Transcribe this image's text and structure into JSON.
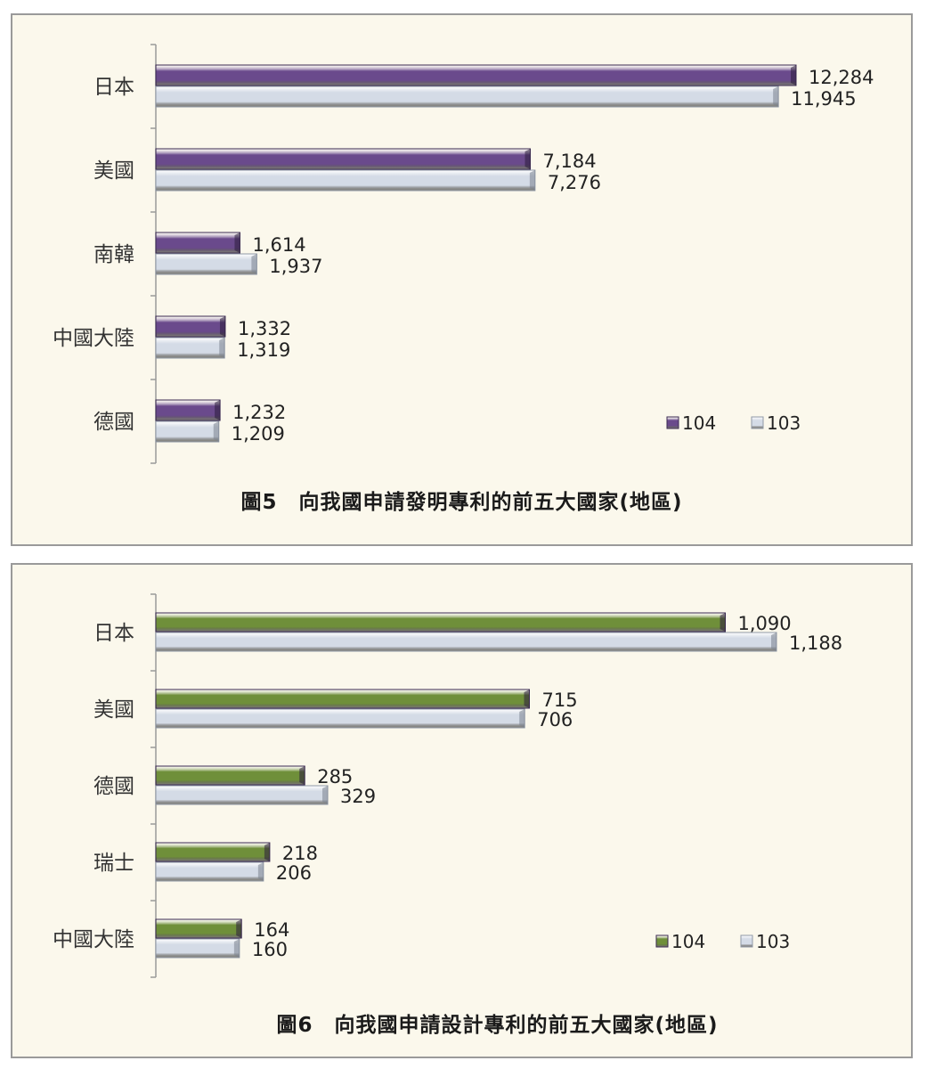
{
  "chart_data": [
    {
      "type": "bar",
      "orientation": "horizontal",
      "title": "圖5　向我國申請發明專利的前五大國家(地區)",
      "categories": [
        "日本",
        "美國",
        "南韓",
        "中國大陸",
        "德國"
      ],
      "series": [
        {
          "name": "104",
          "values": [
            12284,
            7184,
            1614,
            1332,
            1232
          ],
          "color": "#6a4a8c"
        },
        {
          "name": "103",
          "values": [
            11945,
            7276,
            1937,
            1319,
            1209
          ],
          "color": "#d4dbe6"
        }
      ],
      "value_labels": [
        [
          "12,284",
          "7,184",
          "1,614",
          "1,332",
          "1,232"
        ],
        [
          "11,945",
          "7,276",
          "1,937",
          "1,319",
          "1,209"
        ]
      ],
      "xlim": [
        0,
        12284
      ],
      "grid": false,
      "legend_placement": "bottom-right"
    },
    {
      "type": "bar",
      "orientation": "horizontal",
      "title": "圖6　向我國申請設計專利的前五大國家(地區)",
      "categories": [
        "日本",
        "美國",
        "德國",
        "瑞士",
        "中國大陸"
      ],
      "series": [
        {
          "name": "104",
          "values": [
            1090,
            715,
            285,
            218,
            164
          ],
          "color": "#6f8f3a"
        },
        {
          "name": "103",
          "values": [
            1188,
            706,
            329,
            206,
            160
          ],
          "color": "#d4dbe6"
        }
      ],
      "value_labels": [
        [
          "1,090",
          "715",
          "285",
          "218",
          "164"
        ],
        [
          "1,188",
          "706",
          "329",
          "206",
          "160"
        ]
      ],
      "xlim": [
        0,
        1188
      ],
      "grid": false,
      "legend_placement": "bottom-right"
    }
  ]
}
